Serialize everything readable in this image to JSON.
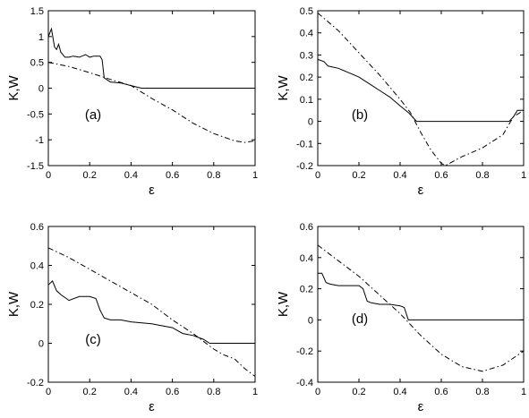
{
  "chart_data": [
    {
      "type": "line",
      "panel_label": "(a)",
      "xlabel": "ε",
      "ylabel": "K,W",
      "xlim": [
        0,
        1
      ],
      "ylim": [
        -1.5,
        1.5
      ],
      "xticks": [
        "0",
        "0.2",
        "0.4",
        "0.6",
        "0.8",
        "1"
      ],
      "yticks": [
        "-1.5",
        "-1",
        "-0.5",
        "0",
        "0.5",
        "1",
        "1.5"
      ],
      "series": [
        {
          "style": "solid",
          "x": [
            0,
            0.015,
            0.03,
            0.04,
            0.05,
            0.06,
            0.08,
            0.1,
            0.12,
            0.15,
            0.18,
            0.2,
            0.22,
            0.25,
            0.26,
            0.27,
            0.3,
            0.35,
            0.4,
            0.45,
            0.5,
            0.6,
            0.7,
            0.8,
            0.9,
            1.0
          ],
          "y": [
            1.0,
            1.15,
            0.8,
            0.75,
            0.85,
            0.7,
            0.6,
            0.6,
            0.62,
            0.6,
            0.65,
            0.6,
            0.62,
            0.62,
            0.55,
            0.2,
            0.12,
            0.1,
            0.05,
            0.0,
            0.0,
            0.0,
            0.0,
            0.0,
            0.0,
            0.0
          ]
        },
        {
          "style": "dashdot",
          "x": [
            0,
            0.1,
            0.2,
            0.3,
            0.4,
            0.5,
            0.6,
            0.7,
            0.8,
            0.9,
            0.95,
            1.0
          ],
          "y": [
            0.5,
            0.42,
            0.3,
            0.17,
            0.05,
            -0.2,
            -0.42,
            -0.68,
            -0.88,
            -1.02,
            -1.05,
            -1.02
          ]
        }
      ]
    },
    {
      "type": "line",
      "panel_label": "(b)",
      "xlabel": "ε",
      "ylabel": "K,W",
      "xlim": [
        0,
        1
      ],
      "ylim": [
        -0.2,
        0.5
      ],
      "xticks": [
        "0",
        "0.2",
        "0.4",
        "0.6",
        "0.8",
        "1"
      ],
      "yticks": [
        "-0.2",
        "-0.1",
        "0",
        "0.1",
        "0.2",
        "0.3",
        "0.4",
        "0.5"
      ],
      "series": [
        {
          "style": "solid",
          "x": [
            0,
            0.03,
            0.05,
            0.1,
            0.15,
            0.2,
            0.25,
            0.3,
            0.35,
            0.4,
            0.44,
            0.46,
            0.48,
            0.5,
            0.6,
            0.7,
            0.8,
            0.9,
            0.93,
            0.95,
            0.97,
            1.0
          ],
          "y": [
            0.28,
            0.27,
            0.25,
            0.24,
            0.22,
            0.2,
            0.17,
            0.14,
            0.11,
            0.07,
            0.04,
            0.02,
            0.0,
            0.0,
            0.0,
            0.0,
            0.0,
            0.0,
            0.0,
            0.02,
            0.05,
            0.05
          ]
        },
        {
          "style": "dashdot",
          "x": [
            0,
            0.1,
            0.2,
            0.3,
            0.4,
            0.45,
            0.5,
            0.55,
            0.6,
            0.62,
            0.7,
            0.8,
            0.9,
            0.95,
            1.0
          ],
          "y": [
            0.49,
            0.41,
            0.31,
            0.21,
            0.1,
            0.04,
            -0.05,
            -0.13,
            -0.19,
            -0.2,
            -0.16,
            -0.12,
            -0.06,
            0.02,
            0.05
          ]
        }
      ]
    },
    {
      "type": "line",
      "panel_label": "(c)",
      "xlabel": "ε",
      "ylabel": "K,W",
      "xlim": [
        0,
        1
      ],
      "ylim": [
        -0.2,
        0.6
      ],
      "xticks": [
        "0",
        "0.2",
        "0.4",
        "0.6",
        "0.8",
        "1"
      ],
      "yticks": [
        "-0.2",
        "0",
        "0.2",
        "0.4",
        "0.6"
      ],
      "series": [
        {
          "style": "solid",
          "x": [
            0,
            0.02,
            0.04,
            0.06,
            0.1,
            0.15,
            0.2,
            0.23,
            0.25,
            0.27,
            0.3,
            0.35,
            0.4,
            0.5,
            0.6,
            0.65,
            0.7,
            0.75,
            0.78,
            0.8,
            0.9,
            1.0
          ],
          "y": [
            0.3,
            0.32,
            0.27,
            0.25,
            0.22,
            0.24,
            0.24,
            0.23,
            0.17,
            0.13,
            0.12,
            0.12,
            0.11,
            0.1,
            0.08,
            0.05,
            0.04,
            0.02,
            0.0,
            0.0,
            0.0,
            0.0
          ]
        },
        {
          "style": "dashdot",
          "x": [
            0,
            0.1,
            0.2,
            0.3,
            0.4,
            0.5,
            0.6,
            0.7,
            0.8,
            0.85,
            0.9,
            0.95,
            1.0
          ],
          "y": [
            0.49,
            0.44,
            0.38,
            0.32,
            0.26,
            0.2,
            0.12,
            0.05,
            -0.03,
            -0.06,
            -0.08,
            -0.13,
            -0.17
          ]
        }
      ]
    },
    {
      "type": "line",
      "panel_label": "(d)",
      "xlabel": "ε",
      "ylabel": "K,W",
      "xlim": [
        0,
        1
      ],
      "ylim": [
        -0.4,
        0.6
      ],
      "xticks": [
        "0",
        "0.2",
        "0.4",
        "0.6",
        "0.8",
        "1"
      ],
      "yticks": [
        "-0.4",
        "-0.2",
        "0",
        "0.2",
        "0.4",
        "0.6"
      ],
      "series": [
        {
          "style": "solid",
          "x": [
            0,
            0.02,
            0.04,
            0.06,
            0.1,
            0.15,
            0.2,
            0.22,
            0.24,
            0.26,
            0.3,
            0.35,
            0.4,
            0.42,
            0.44,
            0.5,
            0.6,
            0.7,
            0.8,
            0.9,
            1.0
          ],
          "y": [
            0.3,
            0.3,
            0.24,
            0.23,
            0.22,
            0.22,
            0.22,
            0.2,
            0.12,
            0.11,
            0.1,
            0.1,
            0.09,
            0.08,
            0.0,
            0.0,
            0.0,
            0.0,
            0.0,
            0.0,
            0.0
          ]
        },
        {
          "style": "dashdot",
          "x": [
            0,
            0.1,
            0.2,
            0.3,
            0.4,
            0.5,
            0.6,
            0.7,
            0.8,
            0.9,
            1.0
          ],
          "y": [
            0.48,
            0.38,
            0.28,
            0.16,
            0.04,
            -0.1,
            -0.22,
            -0.3,
            -0.33,
            -0.29,
            -0.2
          ]
        }
      ]
    }
  ]
}
